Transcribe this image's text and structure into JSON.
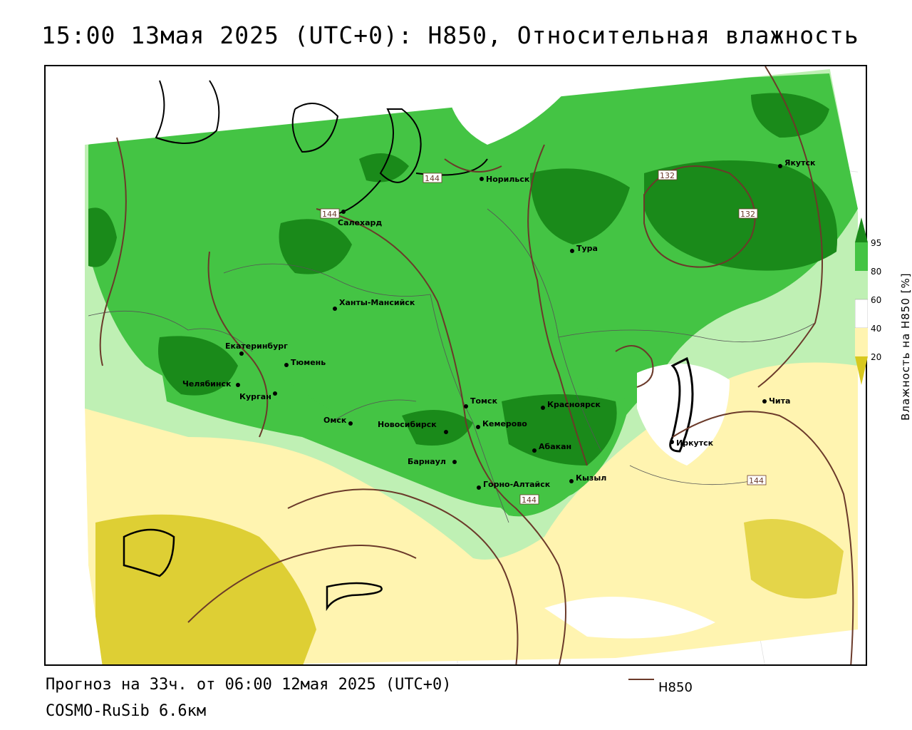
{
  "title": "15:00 13мая 2025 (UTC+0): H850, Относительная влажность",
  "footer": {
    "forecast": "Прогноз на 33ч. от 06:00 12мая 2025 (UTC+0)",
    "model": "COSMO-RuSib 6.6км",
    "legend_label": "H850"
  },
  "colorbar": {
    "title": "Влажность на H850 [%]",
    "ticks": [
      "95",
      "80",
      "60",
      "40",
      "20"
    ],
    "colors": {
      "c95": "#1a8a1a",
      "c80": "#44c444",
      "c60": "#bff0b4",
      "c40": "#ffffff",
      "c20": "#fff4b0",
      "c0": "#d8c81e"
    }
  },
  "cities": [
    {
      "name": "Якутск"
    },
    {
      "name": "Норильск"
    },
    {
      "name": "Салехард"
    },
    {
      "name": "Тура"
    },
    {
      "name": "Ханты-Мансийск"
    },
    {
      "name": "Екатеринбург"
    },
    {
      "name": "Тюмень"
    },
    {
      "name": "Челябинск"
    },
    {
      "name": "Курган"
    },
    {
      "name": "Омск"
    },
    {
      "name": "Новосибирск"
    },
    {
      "name": "Томск"
    },
    {
      "name": "Кемерово"
    },
    {
      "name": "Красноярск"
    },
    {
      "name": "Абакан"
    },
    {
      "name": "Барнаул"
    },
    {
      "name": "Горно-Алтайск"
    },
    {
      "name": "Кызыл"
    },
    {
      "name": "Иркутск"
    },
    {
      "name": "Чита"
    }
  ],
  "isolines": [
    {
      "label": "144"
    },
    {
      "label": "144"
    },
    {
      "label": "132"
    },
    {
      "label": "132"
    },
    {
      "label": "144"
    },
    {
      "label": "144"
    }
  ],
  "colors": {
    "contour": "#6b3a2a",
    "coast": "#000000"
  }
}
